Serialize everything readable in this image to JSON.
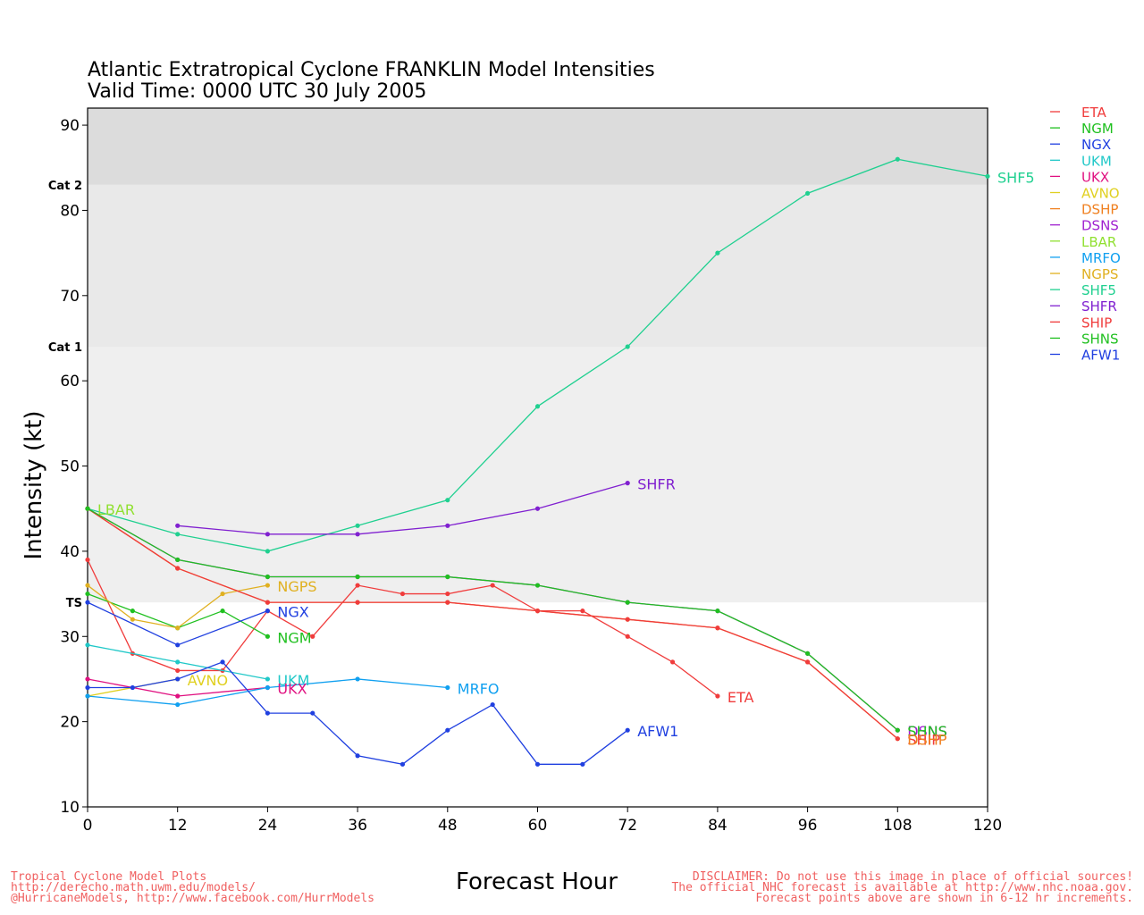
{
  "title_line1": "Atlantic Extratropical Cyclone FRANKLIN Model Intensities",
  "title_line2": "Valid Time: 0000 UTC 30 July 2005",
  "footer_left": [
    "Tropical Cyclone Model Plots",
    "http://derecho.math.uwm.edu/models/",
    "@HurricaneModels, http://www.facebook.com/HurrModels"
  ],
  "footer_right": [
    "DISCLAIMER: Do not use this image in place of official sources!",
    "The official NHC forecast is available at http://www.nhc.noaa.gov.",
    "Forecast points above are shown in 6-12 hr increments."
  ],
  "chart_data": {
    "type": "line",
    "title": "Atlantic Extratropical Cyclone FRANKLIN Model Intensities",
    "subtitle": "Valid Time: 0000 UTC 30 July 2005",
    "xlabel": "Forecast Hour",
    "ylabel": "Intensity (kt)",
    "xlim": [
      0,
      120
    ],
    "ylim": [
      10,
      92
    ],
    "xticks": [
      0,
      12,
      24,
      36,
      48,
      60,
      72,
      84,
      96,
      108,
      120
    ],
    "yticks": [
      10,
      20,
      30,
      40,
      50,
      60,
      70,
      80,
      90
    ],
    "categories_bands": [
      {
        "label": "TS",
        "from": 34,
        "to": 64,
        "color": "#efefef"
      },
      {
        "label": "Cat 1",
        "from": 64,
        "to": 83,
        "color": "#e9e9e9"
      },
      {
        "label": "Cat 2",
        "from": 83,
        "to": 92,
        "color": "#dcdcdc"
      }
    ],
    "legend_position": "right",
    "series": [
      {
        "name": "ETA",
        "color": "#f03c3c",
        "points": [
          [
            0,
            39
          ],
          [
            6,
            28
          ],
          [
            12,
            26
          ],
          [
            18,
            26
          ],
          [
            24,
            33
          ],
          [
            30,
            30
          ],
          [
            36,
            36
          ],
          [
            42,
            35
          ],
          [
            48,
            35
          ],
          [
            54,
            36
          ],
          [
            60,
            33
          ],
          [
            66,
            33
          ],
          [
            72,
            30
          ],
          [
            78,
            27
          ],
          [
            84,
            23
          ]
        ]
      },
      {
        "name": "NGM",
        "color": "#20c020",
        "points": [
          [
            0,
            35
          ],
          [
            6,
            33
          ],
          [
            12,
            31
          ],
          [
            18,
            33
          ],
          [
            24,
            30
          ]
        ]
      },
      {
        "name": "NGX",
        "color": "#2040e0",
        "points": [
          [
            0,
            34
          ],
          [
            12,
            29
          ],
          [
            24,
            33
          ]
        ]
      },
      {
        "name": "UKM",
        "color": "#20c8c8",
        "points": [
          [
            0,
            29
          ],
          [
            12,
            27
          ],
          [
            24,
            25
          ]
        ]
      },
      {
        "name": "UKX",
        "color": "#e01080",
        "points": [
          [
            0,
            25
          ],
          [
            12,
            23
          ],
          [
            24,
            24
          ]
        ]
      },
      {
        "name": "AVNO",
        "color": "#e0d020",
        "points": [
          [
            0,
            23
          ],
          [
            12,
            25
          ]
        ]
      },
      {
        "name": "DSHP",
        "color": "#f08020",
        "points": [
          [
            0,
            45
          ],
          [
            12,
            38
          ],
          [
            24,
            34
          ],
          [
            36,
            34
          ],
          [
            48,
            34
          ],
          [
            60,
            33
          ],
          [
            72,
            32
          ],
          [
            84,
            31
          ],
          [
            96,
            27
          ],
          [
            108,
            18
          ]
        ]
      },
      {
        "name": "DSNS",
        "color": "#a020d0",
        "points": [
          [
            0,
            45
          ],
          [
            12,
            39
          ],
          [
            24,
            37
          ],
          [
            36,
            37
          ],
          [
            48,
            37
          ],
          [
            60,
            36
          ],
          [
            72,
            34
          ],
          [
            84,
            33
          ],
          [
            96,
            28
          ],
          [
            108,
            19
          ]
        ]
      },
      {
        "name": "LBAR",
        "color": "#90e030",
        "points": [
          [
            0,
            45
          ]
        ]
      },
      {
        "name": "MRFO",
        "color": "#10a0f0",
        "points": [
          [
            0,
            23
          ],
          [
            12,
            22
          ],
          [
            24,
            24
          ],
          [
            36,
            25
          ],
          [
            48,
            24
          ]
        ]
      },
      {
        "name": "NGPS",
        "color": "#e0b020",
        "points": [
          [
            0,
            36
          ],
          [
            6,
            32
          ],
          [
            12,
            31
          ],
          [
            18,
            35
          ],
          [
            24,
            36
          ]
        ]
      },
      {
        "name": "SHF5",
        "color": "#20d090",
        "points": [
          [
            0,
            45
          ],
          [
            12,
            42
          ],
          [
            24,
            40
          ],
          [
            36,
            43
          ],
          [
            48,
            46
          ],
          [
            60,
            57
          ],
          [
            72,
            64
          ],
          [
            84,
            75
          ],
          [
            96,
            82
          ],
          [
            108,
            86
          ],
          [
            120,
            84
          ]
        ]
      },
      {
        "name": "SHFR",
        "color": "#8020d0",
        "points": [
          [
            12,
            43
          ],
          [
            24,
            42
          ],
          [
            36,
            42
          ],
          [
            48,
            43
          ],
          [
            60,
            45
          ],
          [
            72,
            48
          ]
        ]
      },
      {
        "name": "SHIP",
        "color": "#f03c3c",
        "points": [
          [
            0,
            45
          ],
          [
            12,
            38
          ],
          [
            24,
            34
          ],
          [
            36,
            34
          ],
          [
            48,
            34
          ],
          [
            60,
            33
          ],
          [
            72,
            32
          ],
          [
            84,
            31
          ],
          [
            96,
            27
          ],
          [
            108,
            18
          ]
        ]
      },
      {
        "name": "SHNS",
        "color": "#20c020",
        "points": [
          [
            0,
            45
          ],
          [
            12,
            39
          ],
          [
            24,
            37
          ],
          [
            36,
            37
          ],
          [
            48,
            37
          ],
          [
            60,
            36
          ],
          [
            72,
            34
          ],
          [
            84,
            33
          ],
          [
            96,
            28
          ],
          [
            108,
            19
          ]
        ]
      },
      {
        "name": "AFW1",
        "color": "#2040e0",
        "points": [
          [
            0,
            24
          ],
          [
            6,
            24
          ],
          [
            12,
            25
          ],
          [
            18,
            27
          ],
          [
            24,
            21
          ],
          [
            30,
            21
          ],
          [
            36,
            16
          ],
          [
            42,
            15
          ],
          [
            48,
            19
          ],
          [
            54,
            22
          ],
          [
            60,
            15
          ],
          [
            66,
            15
          ],
          [
            72,
            19
          ]
        ]
      }
    ],
    "end_labels": [
      {
        "series": "SHF5",
        "text": "SHF5"
      },
      {
        "series": "SHFR",
        "text": "SHFR"
      },
      {
        "series": "LBAR",
        "text": "LBAR"
      },
      {
        "series": "NGPS",
        "text": "NGPS"
      },
      {
        "series": "NGX",
        "text": "NGX"
      },
      {
        "series": "NGM",
        "text": "NGM"
      },
      {
        "series": "UKM",
        "text": "UKM"
      },
      {
        "series": "UKX",
        "text": "UKX"
      },
      {
        "series": "AVNO",
        "text": "AVNO"
      },
      {
        "series": "MRFO",
        "text": "MRFO"
      },
      {
        "series": "AFW1",
        "text": "AFW1"
      },
      {
        "series": "ETA",
        "text": "ETA"
      },
      {
        "series": "DSNS",
        "text": "DSNS"
      },
      {
        "series": "SHNS",
        "text": "SHNS"
      },
      {
        "series": "SHIP",
        "text": "SHIP"
      },
      {
        "series": "DSHP",
        "text": "DSHP"
      }
    ]
  }
}
